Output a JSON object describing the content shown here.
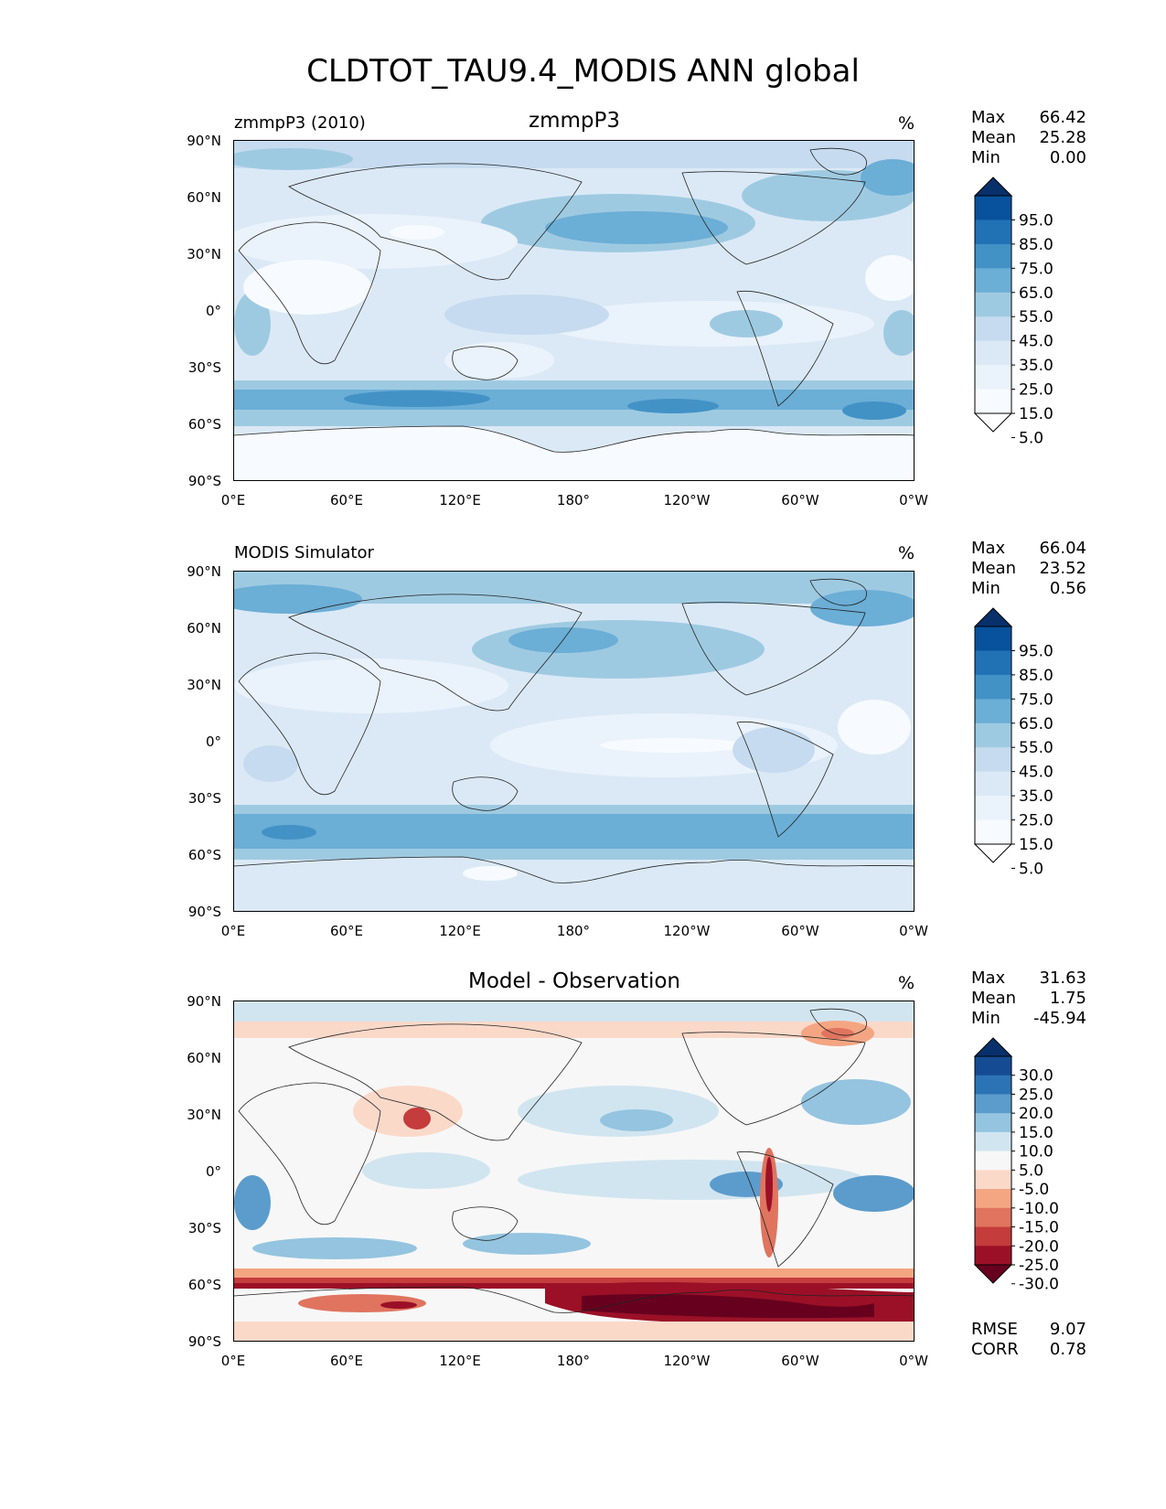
{
  "figure": {
    "title": "CLDTOT_TAU9.4_MODIS ANN global"
  },
  "axes": {
    "y_ticks": [
      "90°N",
      "60°N",
      "30°N",
      "0°",
      "30°S",
      "60°S",
      "90°S"
    ],
    "x_ticks": [
      "0°E",
      "60°E",
      "120°E",
      "180°",
      "120°W",
      "60°W",
      "0°W"
    ]
  },
  "panels": [
    {
      "left_title": "zmmpP3 (2010)",
      "center_title": "zmmpP3",
      "unit": "%",
      "stats": [
        {
          "label": "Max",
          "value": "66.42"
        },
        {
          "label": "Mean",
          "value": "25.28"
        },
        {
          "label": "Min",
          "value": "0.00"
        }
      ],
      "colorbar": {
        "labels": [
          "95.0",
          "85.0",
          "75.0",
          "65.0",
          "55.0",
          "45.0",
          "35.0",
          "25.0",
          "15.0",
          "5.0"
        ],
        "colors": [
          "#08306b",
          "#08519c",
          "#2171b5",
          "#4292c6",
          "#6baed6",
          "#9ecae1",
          "#c6dbef",
          "#dbe9f6",
          "#eaf2fb",
          "#f7fbff",
          "#ffffff"
        ]
      }
    },
    {
      "left_title": "MODIS Simulator",
      "center_title": "",
      "unit": "%",
      "stats": [
        {
          "label": "Max",
          "value": "66.04"
        },
        {
          "label": "Mean",
          "value": "23.52"
        },
        {
          "label": "Min",
          "value": "0.56"
        }
      ],
      "colorbar": {
        "labels": [
          "95.0",
          "85.0",
          "75.0",
          "65.0",
          "55.0",
          "45.0",
          "35.0",
          "25.0",
          "15.0",
          "5.0"
        ],
        "colors": [
          "#08306b",
          "#08519c",
          "#2171b5",
          "#4292c6",
          "#6baed6",
          "#9ecae1",
          "#c6dbef",
          "#dbe9f6",
          "#eaf2fb",
          "#f7fbff",
          "#ffffff"
        ]
      }
    },
    {
      "left_title": "",
      "center_title": "Model - Observation",
      "unit": "%",
      "stats": [
        {
          "label": "Max",
          "value": "31.63"
        },
        {
          "label": "Mean",
          "value": "1.75"
        },
        {
          "label": "Min",
          "value": "-45.94"
        }
      ],
      "colorbar": {
        "labels": [
          "30.0",
          "25.0",
          "20.0",
          "15.0",
          "10.0",
          "5.0",
          "-5.0",
          "-10.0",
          "-15.0",
          "-20.0",
          "-25.0",
          "-30.0"
        ],
        "colors": [
          "#08306b",
          "#154b92",
          "#2c73b5",
          "#5b9ccc",
          "#94c4df",
          "#d1e5f0",
          "#f7f7f7",
          "#fbd9c9",
          "#f4a582",
          "#e0745f",
          "#c43c3c",
          "#9b1027",
          "#67001f"
        ]
      },
      "error_stats": [
        {
          "label": "RMSE",
          "value": "9.07"
        },
        {
          "label": "CORR",
          "value": "0.78"
        }
      ]
    }
  ]
}
